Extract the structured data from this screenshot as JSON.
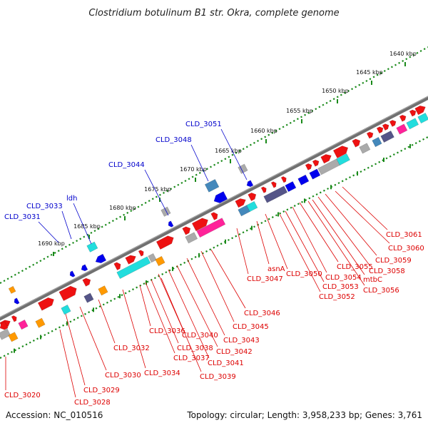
{
  "title": "Clostridium botulinum B1 str. Okra, complete genome",
  "footer": {
    "accession": "Accession: NC_010516",
    "topology": "Topology: circular; Length: 3,958,233 bp; Genes: 3,761"
  },
  "scale_labels": [
    "1640 kbp",
    "1645 kbp",
    "1650 kbp",
    "1655 kbp",
    "1660 kbp",
    "1665 kbp",
    "1670 kbp",
    "1675 kbp",
    "1680 kbp",
    "1685 kbp",
    "1690 kbp"
  ],
  "colors": {
    "backbone": "#707070",
    "scale_dots": "#1a8a1a",
    "forward_gene": "#ee1111",
    "reverse_gene": "#0000ee",
    "label_forward": "#dd0000",
    "label_reverse": "#0000cc",
    "cyan_feature": "#22dddd",
    "magenta_feature": "#ff2299",
    "gray_feature": "#aaaaaa",
    "purple_feature": "#555588",
    "orange_feature": "#ff9900",
    "steel_feature": "#4488bb"
  },
  "labels_top": [
    "CLD_3051",
    "CLD_3048",
    "CLD_3044",
    "ldh",
    "CLD_3033",
    "CLD_3031"
  ],
  "labels_bottom": [
    "CLD_3061",
    "CLD_3060",
    "CLD_3059",
    "CLD_3058",
    "mtbC",
    "CLD_3056",
    "CLD_3055",
    "CLD_3054",
    "CLD_3053",
    "CLD_3052",
    "CLD_3050",
    "asnA",
    "CLD_3047",
    "CLD_3046",
    "CLD_3045",
    "CLD_3043",
    "CLD_3042",
    "CLD_3041",
    "CLD_3040",
    "CLD_3039",
    "CLD_3038",
    "CLD_3037",
    "CLD_3036",
    "CLD_3034",
    "CLD_3032",
    "CLD_3030",
    "CLD_3029",
    "CLD_3028",
    "CLD_3020"
  ]
}
